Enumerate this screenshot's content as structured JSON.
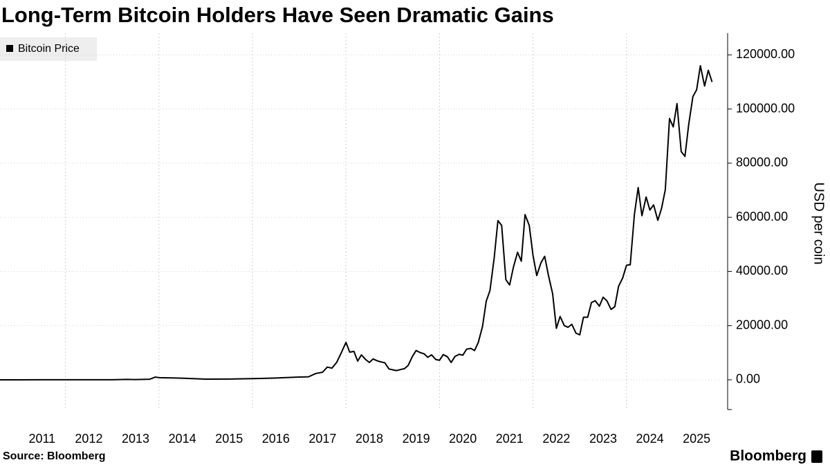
{
  "chart_data": {
    "type": "line",
    "title": "Long-Term Bitcoin Holders Have Seen Dramatic Gains",
    "source": "Source: Bloomberg",
    "brand": "Bloomberg",
    "ylabel": "USD per coin",
    "x": [
      2010.6,
      2011.0,
      2011.5,
      2012.0,
      2012.5,
      2013.0,
      2013.3,
      2013.5,
      2013.8,
      2013.92,
      2014.0,
      2014.5,
      2015.0,
      2015.5,
      2016.0,
      2016.5,
      2016.9,
      2017.0,
      2017.2,
      2017.35,
      2017.5,
      2017.6,
      2017.7,
      2017.8,
      2017.9,
      2018.0,
      2018.08,
      2018.17,
      2018.25,
      2018.33,
      2018.42,
      2018.5,
      2018.58,
      2018.67,
      2018.75,
      2018.83,
      2018.92,
      2019.0,
      2019.08,
      2019.17,
      2019.25,
      2019.33,
      2019.42,
      2019.5,
      2019.58,
      2019.67,
      2019.75,
      2019.83,
      2019.92,
      2020.0,
      2020.08,
      2020.17,
      2020.25,
      2020.33,
      2020.42,
      2020.5,
      2020.58,
      2020.67,
      2020.75,
      2020.83,
      2020.92,
      2021.0,
      2021.08,
      2021.17,
      2021.25,
      2021.33,
      2021.42,
      2021.5,
      2021.58,
      2021.67,
      2021.75,
      2021.83,
      2021.92,
      2022.0,
      2022.08,
      2022.17,
      2022.25,
      2022.33,
      2022.42,
      2022.5,
      2022.58,
      2022.67,
      2022.75,
      2022.83,
      2022.92,
      2023.0,
      2023.08,
      2023.17,
      2023.25,
      2023.33,
      2023.42,
      2023.5,
      2023.58,
      2023.67,
      2023.75,
      2023.83,
      2023.92,
      2024.0,
      2024.08,
      2024.17,
      2024.25,
      2024.33,
      2024.42,
      2024.5,
      2024.58,
      2024.67,
      2024.75,
      2024.83,
      2024.92,
      2025.0,
      2025.08,
      2025.17,
      2025.25,
      2025.33,
      2025.42,
      2025.5,
      2025.58,
      2025.67,
      2025.75,
      2025.83
    ],
    "series": [
      {
        "name": "Bitcoin Price",
        "color": "#000000",
        "values": [
          0.06,
          0.3,
          15,
          5,
          7,
          13,
          140,
          90,
          200,
          1000,
          800,
          600,
          250,
          270,
          430,
          650,
          950,
          1000,
          1100,
          2300,
          2800,
          4700,
          4300,
          6400,
          10000,
          13800,
          10200,
          10500,
          6900,
          9200,
          7500,
          6400,
          7700,
          7000,
          6600,
          6300,
          4000,
          3700,
          3400,
          3800,
          4100,
          5300,
          8600,
          10800,
          10100,
          9600,
          8300,
          9200,
          7500,
          7200,
          9300,
          8500,
          6400,
          8600,
          9400,
          9100,
          11300,
          11600,
          10800,
          13800,
          19700,
          29000,
          33000,
          45000,
          58800,
          57000,
          37000,
          35000,
          41500,
          47100,
          43800,
          61000,
          57000,
          46000,
          38500,
          43200,
          45600,
          38600,
          31800,
          19000,
          23400,
          20000,
          19400,
          20500,
          17200,
          16600,
          23100,
          23100,
          28500,
          29200,
          27200,
          30500,
          29200,
          26000,
          27000,
          34500,
          37700,
          42300,
          42500,
          61200,
          71000,
          60600,
          67500,
          62700,
          64600,
          58900,
          63300,
          70200,
          96500,
          93400,
          102000,
          84300,
          82500,
          94200,
          104600,
          107100,
          116000,
          108500,
          114300,
          110000
        ]
      }
    ],
    "xlim": [
      2010.6,
      2026.03
    ],
    "xticks": [
      2011,
      2012,
      2013,
      2014,
      2015,
      2016,
      2017,
      2018,
      2019,
      2020,
      2021,
      2022,
      2023,
      2024,
      2025
    ],
    "ylim": [
      -11000,
      128000
    ],
    "yticks": [
      {
        "value": 0,
        "label": "0.00"
      },
      {
        "value": 20000,
        "label": "20000.00"
      },
      {
        "value": 40000,
        "label": "40000.00"
      },
      {
        "value": 60000,
        "label": "60000.00"
      },
      {
        "value": 80000,
        "label": "80000.00"
      },
      {
        "value": 100000,
        "label": "100000.00"
      },
      {
        "value": 120000,
        "label": "120000.00"
      }
    ],
    "grid": true,
    "legend": "top-left"
  }
}
